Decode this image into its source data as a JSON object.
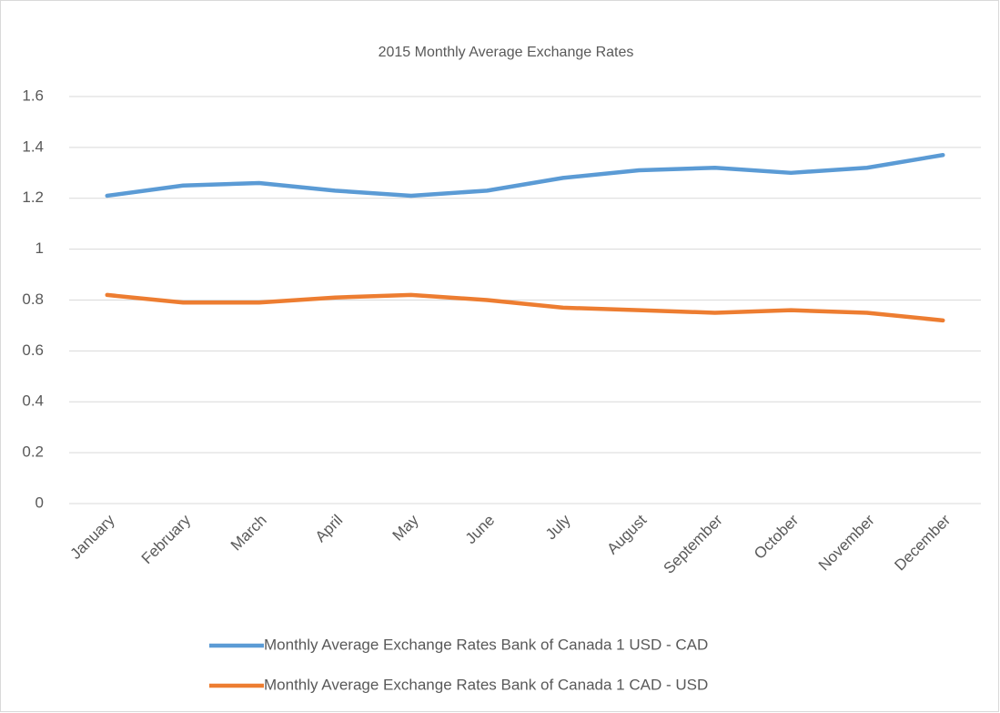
{
  "chart_data": {
    "type": "line",
    "title": "2015 Monthly Average Exchange Rates",
    "categories": [
      "January",
      "February",
      "March",
      "April",
      "May",
      "June",
      "July",
      "August",
      "September",
      "October",
      "November",
      "December"
    ],
    "series": [
      {
        "name": "Monthly Average Exchange Rates Bank of Canada 1 USD - CAD",
        "color": "#5b9bd5",
        "values": [
          1.21,
          1.25,
          1.26,
          1.23,
          1.21,
          1.23,
          1.28,
          1.31,
          1.32,
          1.3,
          1.32,
          1.37
        ]
      },
      {
        "name": "Monthly Average Exchange Rates Bank of Canada 1 CAD - USD",
        "color": "#ed7d31",
        "values": [
          0.82,
          0.79,
          0.79,
          0.81,
          0.82,
          0.8,
          0.77,
          0.76,
          0.75,
          0.76,
          0.75,
          0.72
        ]
      }
    ],
    "ylim": [
      0,
      1.6
    ],
    "yticks": [
      0,
      0.2,
      0.4,
      0.6,
      0.8,
      1,
      1.2,
      1.4,
      1.6
    ],
    "grid": true,
    "legend": "bottom"
  }
}
